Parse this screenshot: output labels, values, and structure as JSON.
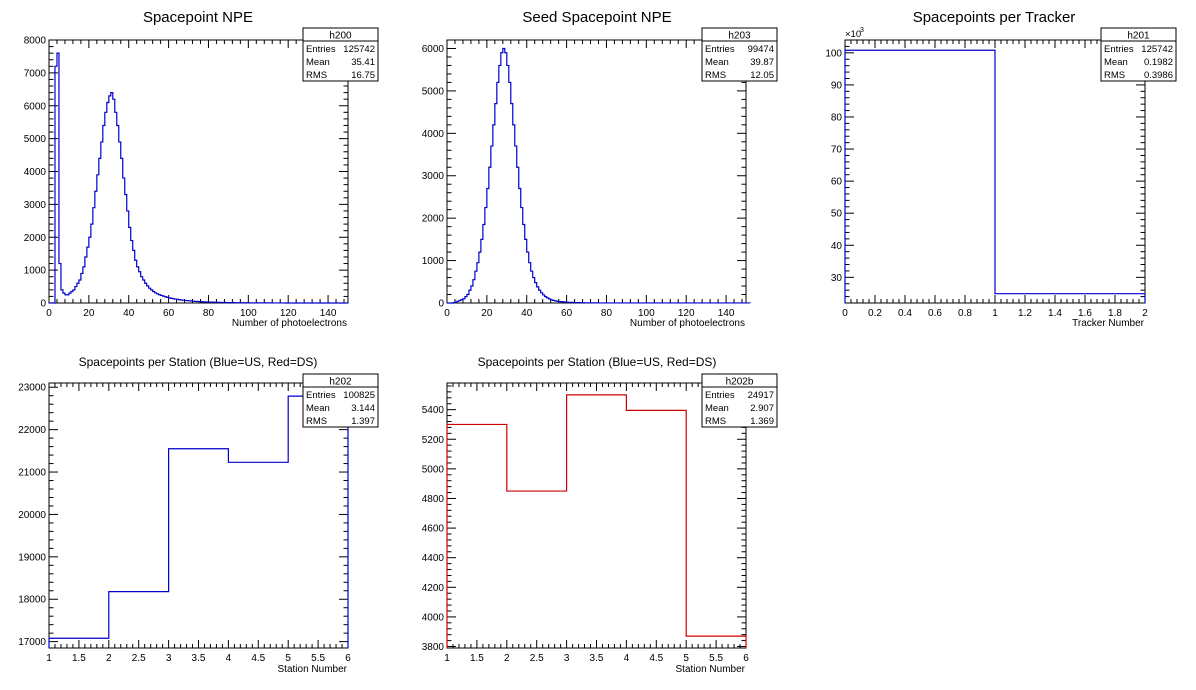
{
  "chart_data": [
    {
      "type": "histogram",
      "title": "Spacepoint NPE",
      "xlabel": "Number of photoelectrons",
      "ylabel": "",
      "xlim": [
        0,
        150
      ],
      "ylim": [
        0,
        8000
      ],
      "xticks": [
        0,
        20,
        40,
        60,
        80,
        100,
        120,
        140
      ],
      "yticks": [
        0,
        1000,
        2000,
        3000,
        4000,
        5000,
        6000,
        7000,
        8000
      ],
      "color": "#0000cc",
      "bin_width": 1,
      "values": [
        0,
        0,
        0,
        7200,
        7600,
        1200,
        400,
        300,
        250,
        250,
        300,
        350,
        400,
        500,
        600,
        700,
        900,
        1100,
        1400,
        1700,
        2000,
        2400,
        2900,
        3400,
        3900,
        4400,
        4900,
        5400,
        5800,
        6100,
        6300,
        6400,
        6200,
        5800,
        5400,
        4900,
        4400,
        3800,
        3300,
        2800,
        2300,
        1900,
        1600,
        1300,
        1100,
        950,
        800,
        700,
        600,
        520,
        450,
        400,
        350,
        310,
        280,
        250,
        230,
        210,
        190,
        170,
        155,
        140,
        130,
        120,
        110,
        100,
        92,
        85,
        78,
        72,
        66,
        60,
        55,
        50,
        46,
        42,
        38,
        35,
        32,
        30,
        28,
        26,
        24,
        22,
        20,
        18,
        17,
        16,
        15,
        14,
        13,
        12,
        11,
        10,
        9,
        9,
        8,
        8,
        7,
        7,
        6,
        6,
        5,
        5,
        5,
        4,
        4,
        4,
        3,
        3,
        3,
        3,
        2,
        2,
        2,
        2,
        2,
        2,
        1,
        1,
        1,
        1,
        1,
        1,
        1,
        1,
        1,
        1,
        1,
        1,
        1,
        1,
        1,
        1,
        1,
        1,
        1,
        1,
        1,
        1,
        1,
        1,
        1,
        1,
        1,
        1,
        1,
        1,
        1,
        1
      ],
      "stats": {
        "name": "h200",
        "rows": [
          {
            "label": "Entries",
            "value": "125742"
          },
          {
            "label": "Mean",
            "value": "35.41"
          },
          {
            "label": "RMS",
            "value": "16.75"
          }
        ]
      }
    },
    {
      "type": "histogram",
      "title": "Seed Spacepoint NPE",
      "xlabel": "Number of photoelectrons",
      "ylabel": "",
      "xlim": [
        0,
        150
      ],
      "ylim": [
        0,
        6200
      ],
      "xticks": [
        0,
        20,
        40,
        60,
        80,
        100,
        120,
        140
      ],
      "yticks": [
        0,
        1000,
        2000,
        3000,
        4000,
        5000,
        6000
      ],
      "color": "#0000cc",
      "bin_width": 1,
      "values": [
        0,
        0,
        0,
        10,
        20,
        40,
        60,
        80,
        100,
        150,
        200,
        300,
        400,
        550,
        750,
        950,
        1200,
        1500,
        1850,
        2250,
        2700,
        3200,
        3700,
        4200,
        4700,
        5200,
        5600,
        5900,
        6000,
        5900,
        5600,
        5200,
        4700,
        4200,
        3700,
        3200,
        2700,
        2250,
        1850,
        1500,
        1200,
        950,
        750,
        600,
        480,
        380,
        300,
        240,
        190,
        150,
        120,
        95,
        75,
        60,
        50,
        42,
        35,
        30,
        26,
        22,
        19,
        16,
        14,
        12,
        10,
        9,
        8,
        7,
        6,
        5,
        5,
        4,
        4,
        3,
        3,
        3,
        2,
        2,
        2,
        2,
        2,
        1,
        1,
        1,
        1,
        1,
        1,
        1,
        1,
        1,
        1,
        1,
        1,
        1,
        1,
        1,
        1,
        1,
        1,
        1,
        1,
        1,
        1,
        1,
        1,
        1,
        1,
        1,
        1,
        1,
        1,
        1,
        1,
        1,
        1,
        1,
        1,
        1,
        1,
        1,
        1,
        1,
        1,
        1,
        1,
        1,
        1,
        1,
        1,
        1,
        1,
        1,
        1,
        1,
        1,
        1,
        1,
        1,
        1,
        1,
        1,
        1,
        1,
        1,
        1,
        1,
        1,
        1,
        1,
        1,
        1,
        1
      ],
      "stats": {
        "name": "h203",
        "rows": [
          {
            "label": "Entries",
            "value": "99474"
          },
          {
            "label": "Mean",
            "value": "39.87"
          },
          {
            "label": "RMS",
            "value": "12.05"
          }
        ]
      }
    },
    {
      "type": "histogram",
      "title": "Spacepoints per Tracker",
      "xlabel": "Tracker Number",
      "ylabel": "",
      "xlim": [
        0,
        2
      ],
      "ylim": [
        22,
        104
      ],
      "exponent_label": "×10",
      "exponent_power": "3",
      "xticks": [
        0,
        0.2,
        0.4,
        0.6,
        0.8,
        1,
        1.2,
        1.4,
        1.6,
        1.8,
        2
      ],
      "xtick_labels": [
        "0",
        "0.2",
        "0.4",
        "0.6",
        "0.8",
        "1",
        "1.2",
        "1.4",
        "1.6",
        "1.8",
        "2"
      ],
      "yticks": [
        30,
        40,
        50,
        60,
        70,
        80,
        90,
        100
      ],
      "color": "#0000cc",
      "bin_edges": [
        0,
        1,
        2
      ],
      "values": [
        100.8,
        24.9
      ],
      "stats": {
        "name": "h201",
        "rows": [
          {
            "label": "Entries",
            "value": "125742"
          },
          {
            "label": "Mean",
            "value": "0.1982"
          },
          {
            "label": "RMS",
            "value": "0.3986"
          }
        ]
      }
    },
    {
      "type": "histogram",
      "title": "Spacepoints per Station (Blue=US, Red=DS)",
      "xlabel": "Station Number",
      "ylabel": "",
      "xlim": [
        1,
        6
      ],
      "ylim": [
        16850,
        23100
      ],
      "xticks": [
        1,
        1.5,
        2,
        2.5,
        3,
        3.5,
        4,
        4.5,
        5,
        5.5,
        6
      ],
      "xtick_labels": [
        "1",
        "1.5",
        "2",
        "2.5",
        "3",
        "3.5",
        "4",
        "4.5",
        "5",
        "5.5",
        "6"
      ],
      "yticks": [
        17000,
        18000,
        19000,
        20000,
        21000,
        22000,
        23000
      ],
      "color": "#0000cc",
      "bin_edges": [
        1,
        2,
        3,
        4,
        5,
        6
      ],
      "values": [
        17080,
        18180,
        21550,
        21230,
        22790
      ],
      "stats": {
        "name": "h202",
        "rows": [
          {
            "label": "Entries",
            "value": "100825"
          },
          {
            "label": "Mean",
            "value": "3.144"
          },
          {
            "label": "RMS",
            "value": "1.397"
          }
        ]
      }
    },
    {
      "type": "histogram",
      "title": "Spacepoints per Station (Blue=US, Red=DS)",
      "xlabel": "Station Number",
      "ylabel": "",
      "xlim": [
        1,
        6
      ],
      "ylim": [
        3790,
        5580
      ],
      "xticks": [
        1,
        1.5,
        2,
        2.5,
        3,
        3.5,
        4,
        4.5,
        5,
        5.5,
        6
      ],
      "xtick_labels": [
        "1",
        "1.5",
        "2",
        "2.5",
        "3",
        "3.5",
        "4",
        "4.5",
        "5",
        "5.5",
        "6"
      ],
      "yticks": [
        3800,
        4000,
        4200,
        4400,
        4600,
        4800,
        5000,
        5200,
        5400
      ],
      "color": "#cc0000",
      "bin_edges": [
        1,
        2,
        3,
        4,
        5,
        6
      ],
      "values": [
        5300,
        4850,
        5500,
        5395,
        3870
      ],
      "stats": {
        "name": "h202b",
        "rows": [
          {
            "label": "Entries",
            "value": "24917"
          },
          {
            "label": "Mean",
            "value": "2.907"
          },
          {
            "label": "RMS",
            "value": "1.369"
          }
        ]
      }
    }
  ]
}
